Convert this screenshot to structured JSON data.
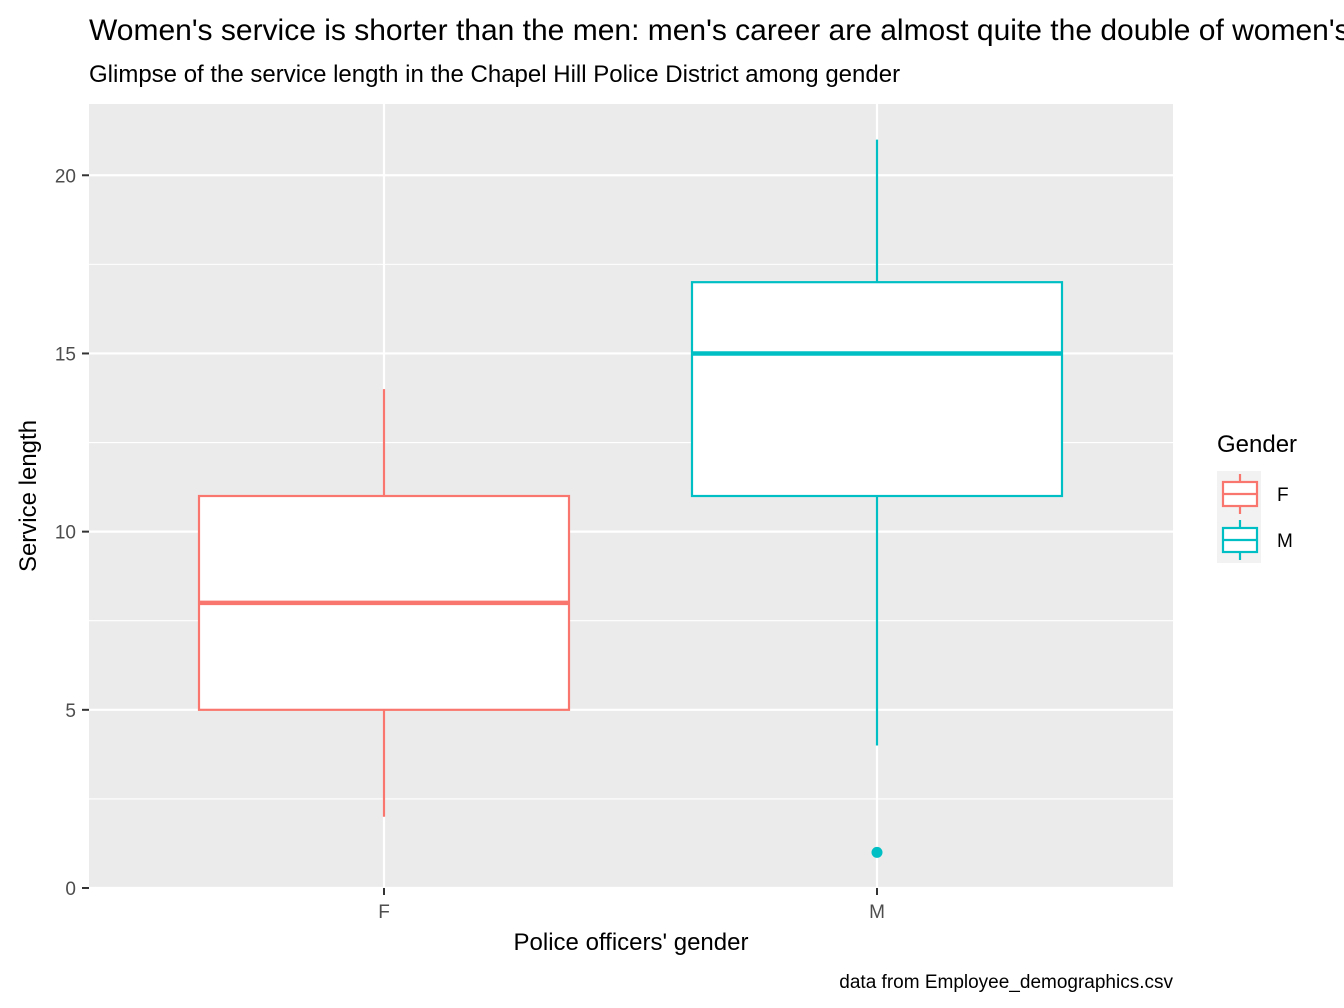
{
  "chart_data": {
    "type": "boxplot",
    "title": "Women's service is shorter than the men: men's career are almost quite the double of women's",
    "subtitle": "Glimpse of the service length in the Chapel Hill Police District among gender",
    "caption": "data from Employee_demographics.csv",
    "xlabel": "Police officers' gender",
    "ylabel": "Service length",
    "categories": [
      "F",
      "M"
    ],
    "ylim": [
      0,
      22
    ],
    "yticks": [
      0,
      5,
      10,
      15,
      20
    ],
    "grid": true,
    "legend": {
      "title": "Gender",
      "placement": "right",
      "entries": [
        "F",
        "M"
      ]
    },
    "series": [
      {
        "name": "F",
        "color": "#F8766D",
        "whisker_low": 2,
        "q1": 5,
        "median": 8,
        "q3": 11,
        "whisker_high": 14,
        "outliers": []
      },
      {
        "name": "M",
        "color": "#00BFC4",
        "whisker_low": 4,
        "q1": 11,
        "median": 15,
        "q3": 17,
        "whisker_high": 21,
        "outliers": [
          1
        ]
      }
    ],
    "colors": {
      "panel_background": "#EBEBEB",
      "grid_line": "#FFFFFF",
      "axis_text": "#4D4D4D",
      "text": "#000000"
    }
  }
}
